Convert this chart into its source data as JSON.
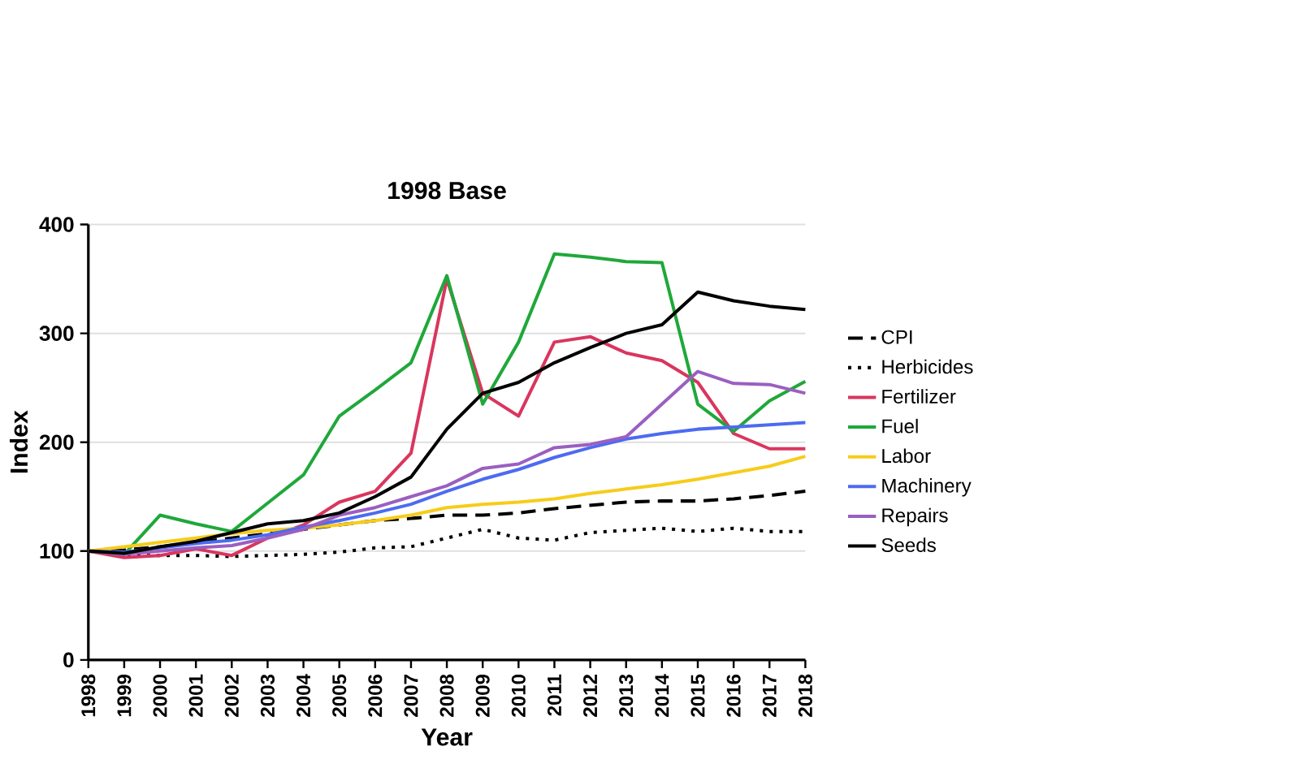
{
  "chart_data": {
    "type": "line",
    "title": "1998 Base",
    "xlabel": "Year",
    "ylabel": "Index",
    "categories": [
      "1998",
      "1999",
      "2000",
      "2001",
      "2002",
      "2003",
      "2004",
      "2005",
      "2006",
      "2007",
      "2008",
      "2009",
      "2010",
      "2011",
      "2012",
      "2013",
      "2014",
      "2015",
      "2016",
      "2017",
      "2018"
    ],
    "ylim": [
      0,
      400
    ],
    "yticks": [
      0,
      100,
      200,
      300,
      400
    ],
    "grid": "y",
    "legend": "right",
    "marker": "none",
    "series": [
      {
        "name": "CPI",
        "color": "#000000",
        "line_style": "dashed",
        "values": [
          100,
          101,
          104,
          108,
          112,
          116,
          120,
          124,
          128,
          130,
          133,
          133,
          135,
          139,
          142,
          145,
          146,
          146,
          148,
          151,
          155
        ]
      },
      {
        "name": "Herbicides",
        "color": "#000000",
        "line_style": "dotted",
        "values": [
          100,
          96,
          96,
          96,
          95,
          96,
          97,
          99,
          103,
          104,
          112,
          120,
          112,
          110,
          117,
          119,
          121,
          118,
          121,
          118,
          118
        ]
      },
      {
        "name": "Fertilizer",
        "color": "#d9365e",
        "line_style": "solid",
        "values": [
          100,
          94,
          96,
          102,
          96,
          112,
          124,
          145,
          155,
          190,
          350,
          245,
          224,
          292,
          297,
          282,
          275,
          255,
          208,
          194,
          194
        ]
      },
      {
        "name": "Fuel",
        "color": "#1fa83a",
        "line_style": "solid",
        "values": [
          100,
          97,
          133,
          125,
          118,
          144,
          170,
          224,
          248,
          273,
          353,
          235,
          292,
          373,
          370,
          366,
          365,
          235,
          210,
          238,
          256
        ]
      },
      {
        "name": "Labor",
        "color": "#f7cc1a",
        "line_style": "solid",
        "values": [
          100,
          104,
          108,
          112,
          116,
          119,
          121,
          124,
          128,
          133,
          140,
          143,
          145,
          148,
          153,
          157,
          161,
          166,
          172,
          178,
          187
        ]
      },
      {
        "name": "Machinery",
        "color": "#4d6bf0",
        "line_style": "solid",
        "values": [
          100,
          99,
          103,
          107,
          110,
          115,
          122,
          128,
          135,
          143,
          155,
          166,
          175,
          186,
          195,
          203,
          208,
          212,
          214,
          216,
          218
        ]
      },
      {
        "name": "Repairs",
        "color": "#9b5fc0",
        "line_style": "solid",
        "values": [
          100,
          97,
          100,
          103,
          105,
          112,
          120,
          133,
          140,
          150,
          160,
          176,
          180,
          195,
          198,
          205,
          235,
          265,
          254,
          253,
          245
        ]
      },
      {
        "name": "Seeds",
        "color": "#000000",
        "line_style": "solid",
        "values": [
          100,
          98,
          104,
          109,
          117,
          125,
          128,
          135,
          150,
          168,
          212,
          245,
          255,
          273,
          287,
          300,
          308,
          338,
          330,
          325,
          322
        ]
      }
    ]
  }
}
